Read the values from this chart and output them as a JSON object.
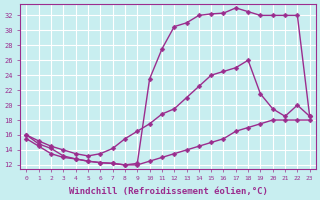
{
  "background_color": "#c8eef0",
  "grid_color": "#b0d8dc",
  "line_color": "#9b2d8e",
  "marker_style": "D",
  "marker_size": 2.5,
  "line_width": 1.0,
  "xlabel": "Windchill (Refroidissement éolien,°C)",
  "xlabel_fontsize": 6.5,
  "ylabel_ticks": [
    12,
    14,
    16,
    18,
    20,
    22,
    24,
    26,
    28,
    30,
    32
  ],
  "xtick_labels": [
    "0",
    "1",
    "2",
    "3",
    "4",
    "5",
    "6",
    "7",
    "8",
    "9",
    "10",
    "11",
    "12",
    "13",
    "14",
    "15",
    "16",
    "17",
    "18",
    "19",
    "20",
    "21",
    "22",
    "23"
  ],
  "xlim": [
    -0.5,
    23.5
  ],
  "ylim": [
    11.5,
    33.5
  ],
  "curves": [
    {
      "x": [
        0,
        1,
        2,
        3,
        4,
        5,
        6,
        7,
        8,
        9,
        10,
        11,
        12,
        13,
        14,
        15,
        16,
        17,
        18,
        19,
        20,
        21,
        22,
        23
      ],
      "y": [
        16,
        14.8,
        14.2,
        13.2,
        12.8,
        12.5,
        12.3,
        12.2,
        12.0,
        12.2,
        23.5,
        27.5,
        30.5,
        31.0,
        32.0,
        32.2,
        32.3,
        33.0,
        32.5,
        32.0,
        32.0,
        32.0,
        32.0,
        18.5
      ]
    },
    {
      "x": [
        0,
        1,
        2,
        3,
        4,
        5,
        6,
        7,
        8,
        9,
        10,
        11,
        12,
        13,
        14,
        15,
        16,
        17,
        18,
        19,
        20,
        21,
        22,
        23
      ],
      "y": [
        16,
        15.2,
        14.5,
        14.0,
        13.5,
        13.2,
        13.5,
        14.2,
        15.5,
        16.5,
        17.5,
        18.8,
        19.5,
        21.0,
        22.5,
        24.0,
        24.5,
        25.0,
        26.0,
        21.5,
        19.5,
        18.5,
        20.0,
        18.5
      ]
    },
    {
      "x": [
        0,
        1,
        2,
        3,
        4,
        5,
        6,
        7,
        8,
        9,
        10,
        11,
        12,
        13,
        14,
        15,
        16,
        17,
        18,
        19,
        20,
        21,
        22,
        23
      ],
      "y": [
        15.5,
        14.5,
        13.5,
        13.0,
        12.8,
        12.5,
        12.3,
        12.2,
        12.0,
        12.0,
        12.5,
        13.0,
        13.5,
        14.0,
        14.5,
        15.0,
        15.5,
        16.5,
        17.0,
        17.5,
        18.0,
        18.0,
        18.0,
        18.0
      ]
    }
  ]
}
